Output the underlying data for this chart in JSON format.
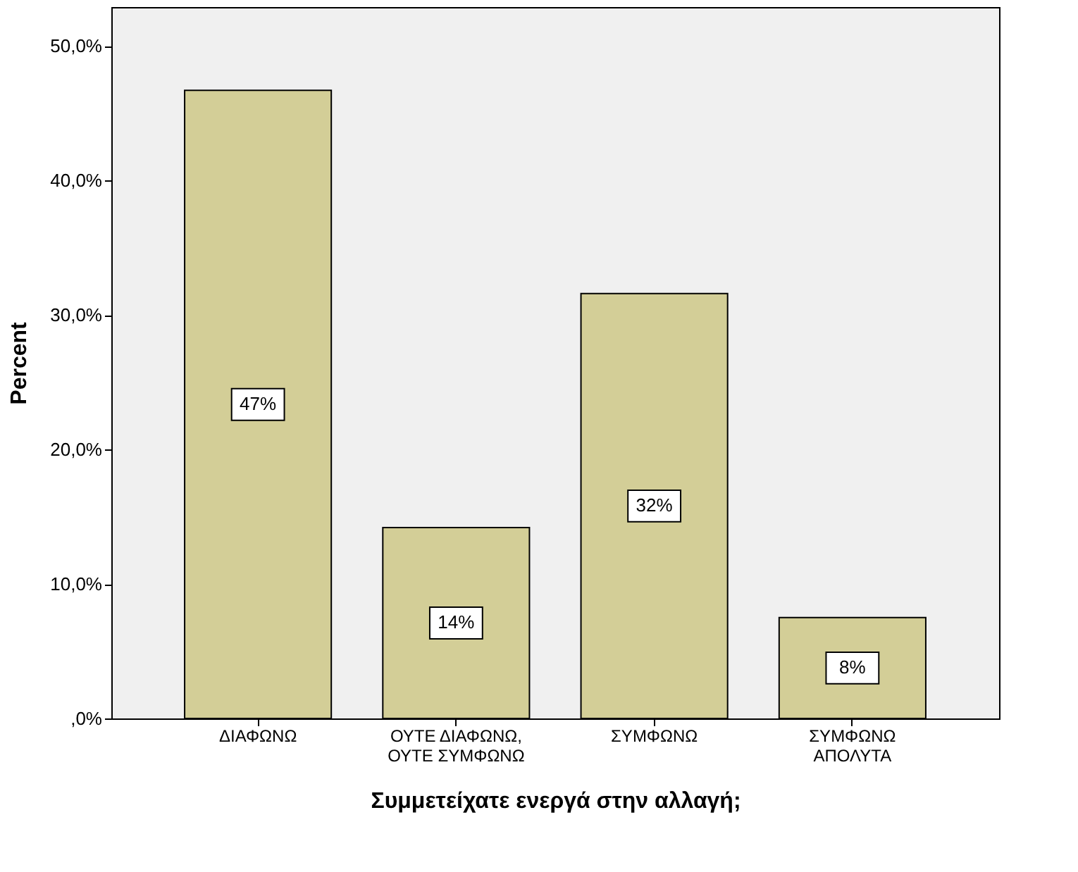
{
  "chart_data": {
    "type": "bar",
    "categories": [
      "ΔΙΑΦΩΝΩ",
      "ΟΥΤΕ ΔΙΑΦΩΝΩ,\nΟΥΤΕ ΣΥΜΦΩΝΩ",
      "ΣΥΜΦΩΝΩ",
      "ΣΥΜΦΩΝΩ\nΑΠΟΛΥΤΑ"
    ],
    "values": [
      46.7,
      14.2,
      31.6,
      7.5
    ],
    "value_labels": [
      "47%",
      "14%",
      "32%",
      "8%"
    ],
    "color": "#d3ce97",
    "xlabel": "Συμμετείχατε ενεργά στην αλλαγή;",
    "ylabel": "Percent",
    "ylim": [
      0,
      52.9
    ],
    "yticks": [
      {
        "value": 0,
        "label": ",0%"
      },
      {
        "value": 10,
        "label": "10,0%"
      },
      {
        "value": 20,
        "label": "20,0%"
      },
      {
        "value": 30,
        "label": "30,0%"
      },
      {
        "value": 40,
        "label": "40,0%"
      },
      {
        "value": 50,
        "label": "50,0%"
      }
    ],
    "grid": false
  }
}
